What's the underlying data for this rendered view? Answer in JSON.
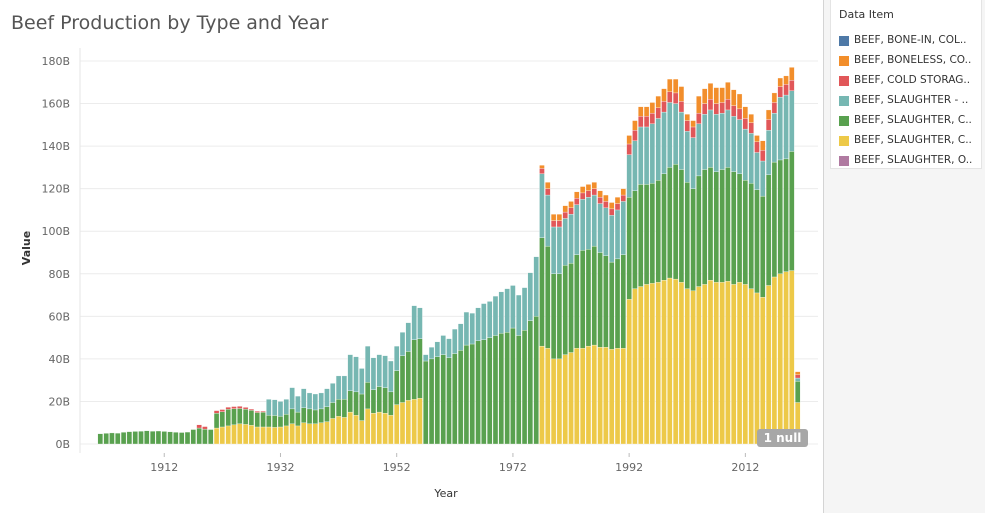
{
  "chart_data": {
    "type": "bar",
    "stacked": true,
    "title": "Beef Production by Type and Year",
    "xlabel": "Year",
    "ylabel": "Value",
    "ylim": [
      0,
      185000000000
    ],
    "y_ticks": [
      0,
      20000000000,
      40000000000,
      60000000000,
      80000000000,
      100000000000,
      120000000000,
      140000000000,
      160000000000,
      180000000000
    ],
    "y_tick_labels": [
      "0B",
      "20B",
      "40B",
      "60B",
      "80B",
      "100B",
      "120B",
      "140B",
      "160B",
      "180B"
    ],
    "x_ticks": [
      1912,
      1932,
      1952,
      1972,
      1992,
      2012
    ],
    "x_range": [
      1897.5,
      2024.5
    ],
    "legend_title": "Data Item",
    "legend_position": "right",
    "null_indicator": "1 null",
    "series": [
      {
        "name": "BEEF, BONE-IN, COL..",
        "color": "#4e79a7"
      },
      {
        "name": "BEEF, BONELESS, CO..",
        "color": "#f28e2b"
      },
      {
        "name": "BEEF, COLD STORAG..",
        "color": "#e15759"
      },
      {
        "name": "BEEF, SLAUGHTER - ..",
        "color": "#76b7b2"
      },
      {
        "name": "BEEF, SLAUGHTER, C..",
        "color": "#59a14f"
      },
      {
        "name": "BEEF, SLAUGHTER, C..",
        "color": "#edc948"
      },
      {
        "name": "BEEF, SLAUGHTER, O..",
        "color": "#b07aa1"
      }
    ],
    "bars": [
      {
        "year": 1901,
        "green": 4.8
      },
      {
        "year": 1902,
        "green": 5.0
      },
      {
        "year": 1903,
        "green": 5.2
      },
      {
        "year": 1904,
        "green": 5.1
      },
      {
        "year": 1905,
        "green": 5.5
      },
      {
        "year": 1906,
        "green": 5.8
      },
      {
        "year": 1907,
        "green": 5.9
      },
      {
        "year": 1908,
        "green": 6.0
      },
      {
        "year": 1909,
        "green": 6.2
      },
      {
        "year": 1910,
        "green": 6.0
      },
      {
        "year": 1911,
        "green": 6.1
      },
      {
        "year": 1912,
        "green": 5.9
      },
      {
        "year": 1913,
        "green": 5.7
      },
      {
        "year": 1914,
        "green": 5.5
      },
      {
        "year": 1915,
        "green": 5.4
      },
      {
        "year": 1916,
        "green": 5.6
      },
      {
        "year": 1917,
        "green": 6.8
      },
      {
        "year": 1918,
        "green": 7.5,
        "red": 1.5
      },
      {
        "year": 1919,
        "green": 7.0,
        "red": 1.2
      },
      {
        "year": 1920,
        "green": 6.8
      },
      {
        "year": 1921,
        "yellow": 7.5,
        "green": 7.0,
        "red": 1.2
      },
      {
        "year": 1922,
        "yellow": 8.0,
        "green": 7.2,
        "red": 1.0
      },
      {
        "year": 1923,
        "yellow": 8.5,
        "green": 7.8,
        "red": 1.0
      },
      {
        "year": 1924,
        "yellow": 9.0,
        "green": 7.6,
        "red": 1.0
      },
      {
        "year": 1925,
        "yellow": 9.5,
        "green": 7.2,
        "red": 1.0
      },
      {
        "year": 1926,
        "yellow": 9.2,
        "green": 7.2,
        "red": 0.8
      },
      {
        "year": 1927,
        "yellow": 8.8,
        "green": 7.0,
        "red": 0.6
      },
      {
        "year": 1928,
        "yellow": 8.0,
        "green": 6.8,
        "red": 0.6
      },
      {
        "year": 1929,
        "yellow": 8.0,
        "green": 6.9,
        "red": 0.5
      },
      {
        "year": 1930,
        "yellow": 8.0,
        "green": 5.5,
        "teal": 7.5
      },
      {
        "year": 1931,
        "yellow": 7.8,
        "green": 5.6,
        "teal": 7.4
      },
      {
        "year": 1932,
        "yellow": 8.0,
        "green": 5.0,
        "teal": 7.0
      },
      {
        "year": 1933,
        "yellow": 8.5,
        "green": 5.5,
        "teal": 7.0
      },
      {
        "year": 1934,
        "yellow": 9.5,
        "green": 7.0,
        "teal": 10.0
      },
      {
        "year": 1935,
        "yellow": 8.5,
        "green": 6.5,
        "teal": 7.5
      },
      {
        "year": 1936,
        "yellow": 10.0,
        "green": 7.0,
        "teal": 9.0
      },
      {
        "year": 1937,
        "yellow": 9.5,
        "green": 7.0,
        "teal": 7.5
      },
      {
        "year": 1938,
        "yellow": 9.5,
        "green": 6.5,
        "teal": 7.5
      },
      {
        "year": 1939,
        "yellow": 10.0,
        "green": 6.5,
        "teal": 7.5
      },
      {
        "year": 1940,
        "yellow": 10.5,
        "green": 7.0,
        "teal": 8.5
      },
      {
        "year": 1941,
        "yellow": 12.0,
        "green": 7.5,
        "teal": 9.0
      },
      {
        "year": 1942,
        "yellow": 13.0,
        "green": 8.0,
        "teal": 11.0
      },
      {
        "year": 1943,
        "yellow": 12.5,
        "green": 8.5,
        "teal": 11.0
      },
      {
        "year": 1944,
        "yellow": 15.0,
        "green": 10.0,
        "teal": 17.0
      },
      {
        "year": 1945,
        "yellow": 13.5,
        "green": 11.0,
        "teal": 16.5
      },
      {
        "year": 1946,
        "yellow": 11.0,
        "green": 12.5,
        "teal": 12.0
      },
      {
        "year": 1947,
        "yellow": 16.5,
        "green": 12.5,
        "teal": 17.0
      },
      {
        "year": 1948,
        "yellow": 14.5,
        "green": 11.0,
        "teal": 15.0
      },
      {
        "year": 1949,
        "yellow": 15.0,
        "green": 12.0,
        "teal": 15.0
      },
      {
        "year": 1950,
        "yellow": 14.5,
        "green": 12.0,
        "teal": 15.0
      },
      {
        "year": 1951,
        "yellow": 13.5,
        "green": 11.0,
        "teal": 14.5
      },
      {
        "year": 1952,
        "yellow": 18.5,
        "green": 16.0,
        "teal": 11.5
      },
      {
        "year": 1953,
        "yellow": 19.5,
        "green": 22.0,
        "teal": 11.0
      },
      {
        "year": 1954,
        "yellow": 20.5,
        "green": 23.0,
        "teal": 13.5
      },
      {
        "year": 1955,
        "yellow": 21.0,
        "green": 28.0,
        "teal": 16.0
      },
      {
        "year": 1956,
        "yellow": 21.5,
        "green": 28.0,
        "teal": 14.5
      },
      {
        "year": 1957,
        "green": 39.0,
        "teal": 3.0
      },
      {
        "year": 1958,
        "green": 40.0,
        "teal": 5.5
      },
      {
        "year": 1959,
        "green": 41.0,
        "teal": 7.0
      },
      {
        "year": 1960,
        "green": 42.0,
        "teal": 9.0
      },
      {
        "year": 1961,
        "green": 40.5,
        "teal": 9.0
      },
      {
        "year": 1962,
        "green": 42.5,
        "teal": 11.5
      },
      {
        "year": 1963,
        "green": 44.0,
        "teal": 12.5
      },
      {
        "year": 1964,
        "green": 46.5,
        "teal": 15.5
      },
      {
        "year": 1965,
        "green": 47.0,
        "teal": 14.5
      },
      {
        "year": 1966,
        "green": 48.5,
        "teal": 15.5
      },
      {
        "year": 1967,
        "green": 49.0,
        "teal": 17.0
      },
      {
        "year": 1968,
        "green": 50.0,
        "teal": 17.0
      },
      {
        "year": 1969,
        "green": 51.0,
        "teal": 18.5
      },
      {
        "year": 1970,
        "green": 52.0,
        "teal": 19.5
      },
      {
        "year": 1971,
        "green": 52.5,
        "teal": 20.5
      },
      {
        "year": 1972,
        "green": 54.5,
        "teal": 20.0
      },
      {
        "year": 1973,
        "green": 51.0,
        "teal": 19.0
      },
      {
        "year": 1974,
        "green": 53.5,
        "teal": 20.0
      },
      {
        "year": 1975,
        "green": 58.0,
        "teal": 22.5
      },
      {
        "year": 1976,
        "green": 60.0,
        "teal": 28.0
      },
      {
        "year": 1977,
        "yellow": 46.0,
        "green": 51.0,
        "teal": 30.0,
        "red": 2.5,
        "orange": 1.5
      },
      {
        "year": 1978,
        "yellow": 45.0,
        "green": 48.0,
        "teal": 24.0,
        "red": 3.0,
        "orange": 3.0
      },
      {
        "year": 1979,
        "yellow": 40.0,
        "green": 40.0,
        "teal": 22.0,
        "red": 3.0,
        "orange": 3.0
      },
      {
        "year": 1980,
        "yellow": 40.0,
        "green": 40.0,
        "teal": 22.0,
        "red": 3.0,
        "orange": 3.0
      },
      {
        "year": 1981,
        "yellow": 42.0,
        "green": 42.0,
        "teal": 22.0,
        "red": 3.0,
        "orange": 3.0
      },
      {
        "year": 1982,
        "yellow": 43.0,
        "green": 42.0,
        "teal": 23.0,
        "red": 3.0,
        "orange": 3.0
      },
      {
        "year": 1983,
        "yellow": 45.0,
        "green": 44.0,
        "teal": 23.5,
        "red": 3.0,
        "orange": 3.0
      },
      {
        "year": 1984,
        "yellow": 45.0,
        "green": 46.0,
        "teal": 24.0,
        "red": 3.0,
        "orange": 3.0
      },
      {
        "year": 1985,
        "yellow": 46.0,
        "green": 45.5,
        "teal": 24.5,
        "red": 3.0,
        "orange": 3.0
      },
      {
        "year": 1986,
        "yellow": 46.5,
        "green": 46.5,
        "teal": 24.0,
        "red": 3.0,
        "orange": 3.0
      },
      {
        "year": 1987,
        "yellow": 45.5,
        "green": 44.5,
        "teal": 23.0,
        "red": 3.0,
        "orange": 3.0
      },
      {
        "year": 1988,
        "yellow": 45.5,
        "green": 43.0,
        "teal": 22.5,
        "red": 3.0,
        "orange": 3.0
      },
      {
        "year": 1989,
        "yellow": 44.5,
        "green": 41.0,
        "teal": 22.0,
        "red": 3.0,
        "orange": 3.0
      },
      {
        "year": 1990,
        "yellow": 45.0,
        "green": 42.0,
        "teal": 23.0,
        "red": 3.0,
        "orange": 3.0
      },
      {
        "year": 1991,
        "yellow": 45.0,
        "green": 44.0,
        "teal": 25.0,
        "red": 3.0,
        "orange": 3.0
      },
      {
        "year": 1992,
        "yellow": 68.0,
        "green": 48.0,
        "teal": 20.0,
        "red": 5.0,
        "orange": 4.0
      },
      {
        "year": 1993,
        "yellow": 73.0,
        "green": 46.0,
        "teal": 23.5,
        "red": 5.0,
        "orange": 4.5
      },
      {
        "year": 1994,
        "yellow": 74.0,
        "green": 48.0,
        "teal": 27.0,
        "red": 5.0,
        "orange": 4.5
      },
      {
        "year": 1995,
        "yellow": 75.0,
        "green": 47.0,
        "teal": 27.0,
        "red": 5.0,
        "orange": 4.5
      },
      {
        "year": 1996,
        "yellow": 75.5,
        "green": 47.0,
        "teal": 28.0,
        "red": 5.0,
        "orange": 5.0
      },
      {
        "year": 1997,
        "yellow": 76.0,
        "green": 48.0,
        "teal": 29.0,
        "red": 5.0,
        "orange": 5.5
      },
      {
        "year": 1998,
        "yellow": 77.0,
        "green": 50.0,
        "teal": 29.0,
        "red": 5.0,
        "orange": 6.0
      },
      {
        "year": 1999,
        "yellow": 78.0,
        "green": 52.0,
        "teal": 30.5,
        "red": 5.0,
        "orange": 6.0
      },
      {
        "year": 2000,
        "yellow": 77.5,
        "green": 54.0,
        "teal": 28.5,
        "red": 5.0,
        "orange": 6.5
      },
      {
        "year": 2001,
        "yellow": 76.0,
        "green": 53.0,
        "teal": 27.0,
        "red": 5.0,
        "orange": 7.0
      },
      {
        "year": 2002,
        "yellow": 73.0,
        "green": 50.0,
        "teal": 24.0,
        "red": 5.0,
        "orange": 3.0
      },
      {
        "year": 2003,
        "yellow": 72.0,
        "green": 48.0,
        "teal": 24.0,
        "red": 5.0,
        "orange": 3.0
      },
      {
        "year": 2004,
        "yellow": 74.0,
        "green": 52.0,
        "teal": 24.5,
        "red": 5.0,
        "orange": 8.0
      },
      {
        "year": 2005,
        "yellow": 75.0,
        "green": 54.0,
        "teal": 26.0,
        "red": 5.0,
        "orange": 7.0
      },
      {
        "year": 2006,
        "yellow": 77.0,
        "green": 53.0,
        "teal": 27.0,
        "red": 5.0,
        "orange": 7.5
      },
      {
        "year": 2007,
        "yellow": 76.0,
        "green": 52.0,
        "teal": 27.0,
        "red": 5.0,
        "orange": 7.5
      },
      {
        "year": 2008,
        "yellow": 76.0,
        "green": 53.0,
        "teal": 26.5,
        "red": 5.0,
        "orange": 7.0
      },
      {
        "year": 2009,
        "yellow": 76.5,
        "green": 53.5,
        "teal": 27.0,
        "red": 5.0,
        "orange": 8.0
      },
      {
        "year": 2010,
        "yellow": 75.0,
        "green": 53.0,
        "teal": 26.0,
        "red": 5.0,
        "orange": 7.5
      },
      {
        "year": 2011,
        "yellow": 76.0,
        "green": 51.0,
        "teal": 25.5,
        "red": 5.0,
        "orange": 7.0
      },
      {
        "year": 2012,
        "yellow": 75.0,
        "green": 49.0,
        "teal": 24.0,
        "red": 5.0,
        "orange": 5.5
      },
      {
        "year": 2013,
        "yellow": 73.0,
        "green": 49.5,
        "teal": 23.5,
        "red": 5.0,
        "orange": 4.0
      },
      {
        "year": 2014,
        "yellow": 71.0,
        "green": 48.5,
        "teal": 17.5,
        "red": 5.0,
        "orange": 3.0
      },
      {
        "year": 2015,
        "yellow": 69.0,
        "green": 47.5,
        "teal": 16.5,
        "red": 5.0,
        "orange": 4.5
      },
      {
        "year": 2016,
        "yellow": 74.5,
        "green": 52.0,
        "teal": 21.0,
        "red": 5.0,
        "orange": 4.5
      },
      {
        "year": 2017,
        "yellow": 78.5,
        "green": 54.0,
        "teal": 23.0,
        "red": 5.0,
        "orange": 4.5
      },
      {
        "year": 2018,
        "yellow": 80.0,
        "green": 53.5,
        "teal": 29.5,
        "red": 5.0,
        "orange": 4.0
      },
      {
        "year": 2019,
        "yellow": 81.0,
        "green": 53.0,
        "teal": 30.0,
        "red": 5.0,
        "orange": 4.0
      },
      {
        "year": 2020,
        "yellow": 81.5,
        "green": 56.0,
        "teal": 28.5,
        "red": 5.0,
        "orange": 6.0
      },
      {
        "year": 2021,
        "yellow": 19.5,
        "green": 10.0,
        "teal": 1.5,
        "red": 1.5,
        "orange": 1.5
      }
    ],
    "value_unit": "billions"
  }
}
